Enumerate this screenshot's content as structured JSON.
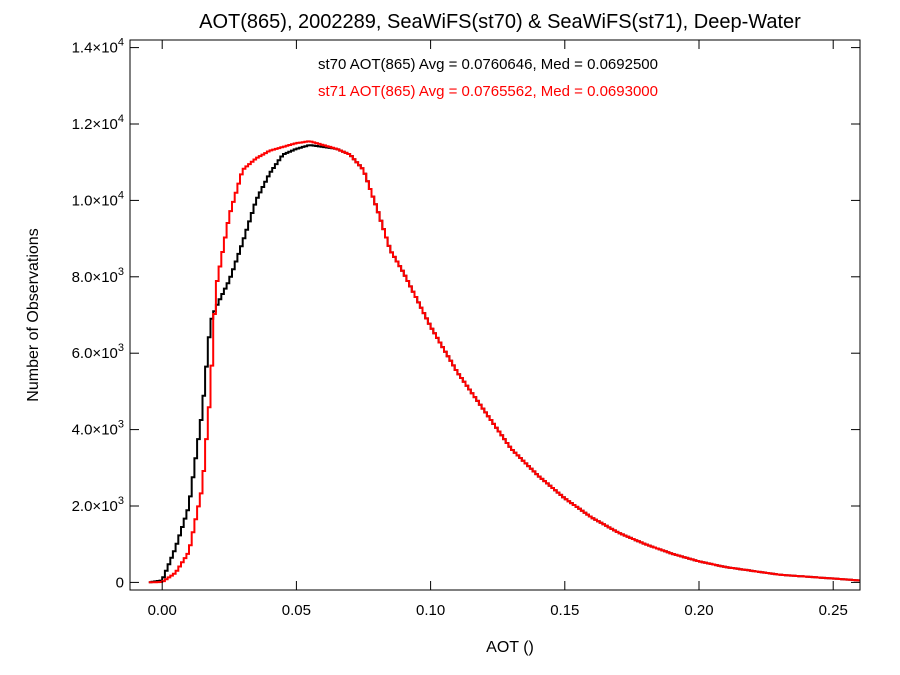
{
  "chart_data": {
    "type": "line",
    "step": true,
    "title": "AOT(865), 2002289, SeaWiFS(st70) & SeaWiFS(st71), Deep-Water",
    "xlabel": "AOT ()",
    "ylabel": "Number of Observations",
    "xlim": [
      -0.012,
      0.26
    ],
    "ylim": [
      -200,
      14200
    ],
    "x_ticks": [
      0.0,
      0.05,
      0.1,
      0.15,
      0.2,
      0.25
    ],
    "x_tick_labels": [
      "0.00",
      "0.05",
      "0.10",
      "0.15",
      "0.20",
      "0.25"
    ],
    "y_ticks": [
      0,
      2000,
      4000,
      6000,
      8000,
      10000,
      12000,
      14000
    ],
    "y_tick_labels": [
      {
        "mant": "0",
        "exp": ""
      },
      {
        "mant": "2.0×10",
        "exp": "3"
      },
      {
        "mant": "4.0×10",
        "exp": "3"
      },
      {
        "mant": "6.0×10",
        "exp": "3"
      },
      {
        "mant": "8.0×10",
        "exp": "3"
      },
      {
        "mant": "1.0×10",
        "exp": "4"
      },
      {
        "mant": "1.2×10",
        "exp": "4"
      },
      {
        "mant": "1.4×10",
        "exp": "4"
      }
    ],
    "grid": false,
    "legend_position": "top-center",
    "series": [
      {
        "name": "st70",
        "label": "st70 AOT(865) Avg = 0.0760646, Med = 0.0692500",
        "color": "#000000",
        "x": [
          -0.005,
          0.0,
          0.005,
          0.01,
          0.015,
          0.018,
          0.02,
          0.025,
          0.03,
          0.035,
          0.04,
          0.045,
          0.05,
          0.055,
          0.06,
          0.065,
          0.07,
          0.075,
          0.08,
          0.085,
          0.09,
          0.1,
          0.11,
          0.12,
          0.13,
          0.14,
          0.15,
          0.16,
          0.17,
          0.18,
          0.19,
          0.2,
          0.21,
          0.22,
          0.23,
          0.24,
          0.25,
          0.26
        ],
        "y": [
          0,
          50,
          900,
          2000,
          4500,
          6800,
          7200,
          7900,
          8900,
          10000,
          10700,
          11200,
          11350,
          11450,
          11400,
          11350,
          11200,
          10800,
          9800,
          8700,
          8100,
          6700,
          5500,
          4500,
          3500,
          2800,
          2200,
          1700,
          1300,
          1000,
          750,
          550,
          400,
          300,
          200,
          150,
          100,
          50
        ]
      },
      {
        "name": "st71",
        "label": "st71 AOT(865) Avg = 0.0765562, Med = 0.0693000",
        "color": "#ff0000",
        "x": [
          -0.005,
          0.0,
          0.005,
          0.01,
          0.015,
          0.018,
          0.02,
          0.025,
          0.03,
          0.035,
          0.04,
          0.045,
          0.05,
          0.055,
          0.06,
          0.065,
          0.07,
          0.075,
          0.08,
          0.085,
          0.09,
          0.1,
          0.11,
          0.12,
          0.13,
          0.14,
          0.15,
          0.16,
          0.17,
          0.18,
          0.19,
          0.2,
          0.21,
          0.22,
          0.23,
          0.24,
          0.25,
          0.26
        ],
        "y": [
          0,
          10,
          250,
          800,
          2500,
          5000,
          7700,
          9600,
          10800,
          11100,
          11300,
          11400,
          11500,
          11550,
          11450,
          11350,
          11200,
          10800,
          9800,
          8700,
          8100,
          6700,
          5500,
          4500,
          3500,
          2800,
          2200,
          1700,
          1300,
          1000,
          750,
          550,
          400,
          300,
          200,
          150,
          100,
          50
        ]
      }
    ]
  }
}
